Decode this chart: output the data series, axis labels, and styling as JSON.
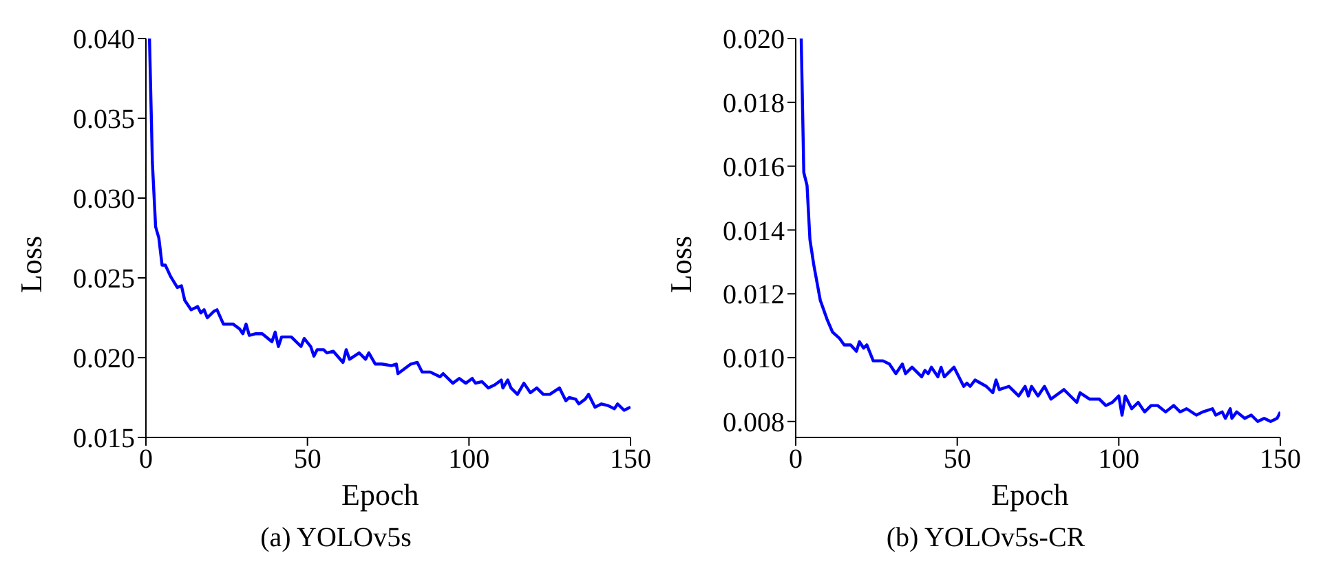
{
  "chart_data": [
    {
      "type": "line",
      "title": "(a) YOLOv5s",
      "xlabel": "Epoch",
      "ylabel": "Loss",
      "xlim": [
        0,
        150
      ],
      "xticks": [
        0,
        50,
        100,
        150
      ],
      "ylim": [
        0.015,
        0.04
      ],
      "yticks": [
        {
          "value": 0.015,
          "label": "0.015"
        },
        {
          "value": 0.02,
          "label": "0.020"
        },
        {
          "value": 0.025,
          "label": "0.025"
        },
        {
          "value": 0.03,
          "label": "0.030"
        },
        {
          "value": 0.035,
          "label": "0.035"
        },
        {
          "value": 0.04,
          "label": "0.040"
        }
      ],
      "marker": "none",
      "line_style": "solid",
      "series": [
        {
          "color": "#0000ff",
          "x": [
            1.1,
            2,
            3,
            4,
            5,
            6,
            7.6,
            9.7,
            11,
            12,
            14,
            16,
            17,
            18,
            19,
            21,
            22,
            24,
            27,
            29,
            30,
            31,
            32,
            34,
            36,
            39,
            40,
            41,
            42,
            45,
            48,
            49,
            51,
            52,
            53,
            55,
            56,
            58,
            61,
            62,
            63,
            66,
            68,
            69,
            71,
            73,
            76,
            77.5,
            78,
            80,
            82,
            84,
            85.5,
            88,
            91,
            92,
            95,
            97,
            99,
            101,
            102,
            104,
            106,
            108,
            110,
            110.5,
            112,
            113,
            115,
            117,
            119,
            121,
            123,
            125,
            128,
            130,
            131,
            133,
            134,
            136,
            137,
            139,
            141,
            143,
            145,
            146,
            148,
            150
          ],
          "values": [
            0.04,
            0.0322,
            0.0282,
            0.0275,
            0.0258,
            0.0258,
            0.0251,
            0.0244,
            0.0245,
            0.0236,
            0.023,
            0.0232,
            0.0228,
            0.023,
            0.0225,
            0.0229,
            0.023,
            0.0221,
            0.0221,
            0.0218,
            0.0215,
            0.0221,
            0.0214,
            0.0215,
            0.0215,
            0.021,
            0.0216,
            0.0207,
            0.0213,
            0.0213,
            0.0207,
            0.0212,
            0.0207,
            0.0201,
            0.0205,
            0.0205,
            0.0203,
            0.0204,
            0.0197,
            0.0205,
            0.0199,
            0.0203,
            0.0199,
            0.0203,
            0.0196,
            0.0196,
            0.0195,
            0.0196,
            0.019,
            0.0193,
            0.0196,
            0.0197,
            0.0191,
            0.0191,
            0.0188,
            0.019,
            0.0184,
            0.0187,
            0.0184,
            0.0187,
            0.0184,
            0.0185,
            0.0181,
            0.0183,
            0.0186,
            0.0181,
            0.0186,
            0.0181,
            0.0177,
            0.0184,
            0.0178,
            0.0181,
            0.0177,
            0.0177,
            0.0181,
            0.0173,
            0.0175,
            0.0174,
            0.0171,
            0.0174,
            0.0177,
            0.0169,
            0.0171,
            0.017,
            0.0168,
            0.0171,
            0.0167,
            0.0169
          ]
        }
      ]
    },
    {
      "type": "line",
      "title": "(b) YOLOv5s-CR",
      "xlabel": "Epoch",
      "ylabel": "Loss",
      "xlim": [
        0,
        150
      ],
      "xticks": [
        0,
        50,
        100,
        150
      ],
      "ylim": [
        0.0075,
        0.02
      ],
      "yticks": [
        {
          "value": 0.008,
          "label": "0.008"
        },
        {
          "value": 0.01,
          "label": "0.010"
        },
        {
          "value": 0.012,
          "label": "0.012"
        },
        {
          "value": 0.014,
          "label": "0.014"
        },
        {
          "value": 0.016,
          "label": "0.016"
        },
        {
          "value": 0.018,
          "label": "0.018"
        },
        {
          "value": 0.02,
          "label": "0.020"
        }
      ],
      "marker": "none",
      "line_style": "solid",
      "series": [
        {
          "color": "#0000ff",
          "x": [
            1.7,
            2.5,
            3.5,
            4.4,
            5.6,
            7.6,
            9.7,
            11.4,
            13.6,
            15,
            17,
            18.8,
            19.7,
            21,
            22,
            24,
            27,
            29,
            31,
            33,
            34,
            36,
            39,
            40,
            41,
            42,
            44,
            45,
            46,
            49,
            51,
            52,
            53,
            54,
            55.5,
            59,
            61,
            62,
            63,
            66,
            67,
            69,
            71,
            72,
            73,
            75,
            77,
            79,
            83,
            84,
            87,
            88,
            91,
            94,
            96,
            98,
            100,
            101,
            102,
            104,
            106,
            108,
            110,
            112,
            114.5,
            117,
            119,
            121,
            124,
            126,
            129,
            130,
            132,
            133,
            134.5,
            135,
            136.5,
            139,
            141,
            143,
            145,
            147,
            149,
            150
          ],
          "values": [
            0.02,
            0.0158,
            0.0154,
            0.0137,
            0.0129,
            0.0118,
            0.0112,
            0.0108,
            0.0106,
            0.0104,
            0.0104,
            0.0102,
            0.0105,
            0.0103,
            0.0104,
            0.0099,
            0.0099,
            0.0098,
            0.0095,
            0.0098,
            0.0095,
            0.0097,
            0.0094,
            0.0096,
            0.0095,
            0.0097,
            0.0094,
            0.0097,
            0.0094,
            0.0097,
            0.0093,
            0.0091,
            0.0092,
            0.0091,
            0.0093,
            0.0091,
            0.0089,
            0.0093,
            0.009,
            0.0091,
            0.009,
            0.0088,
            0.0091,
            0.0088,
            0.0091,
            0.0088,
            0.0091,
            0.0087,
            0.009,
            0.0089,
            0.0086,
            0.0089,
            0.0087,
            0.0087,
            0.0085,
            0.0086,
            0.0088,
            0.0082,
            0.0088,
            0.0084,
            0.0086,
            0.0083,
            0.0085,
            0.0085,
            0.0083,
            0.0085,
            0.0083,
            0.0084,
            0.0082,
            0.0083,
            0.0084,
            0.0082,
            0.0083,
            0.0081,
            0.0084,
            0.0081,
            0.0083,
            0.0081,
            0.0082,
            0.008,
            0.0081,
            0.008,
            0.0081,
            0.0083
          ]
        }
      ]
    }
  ]
}
